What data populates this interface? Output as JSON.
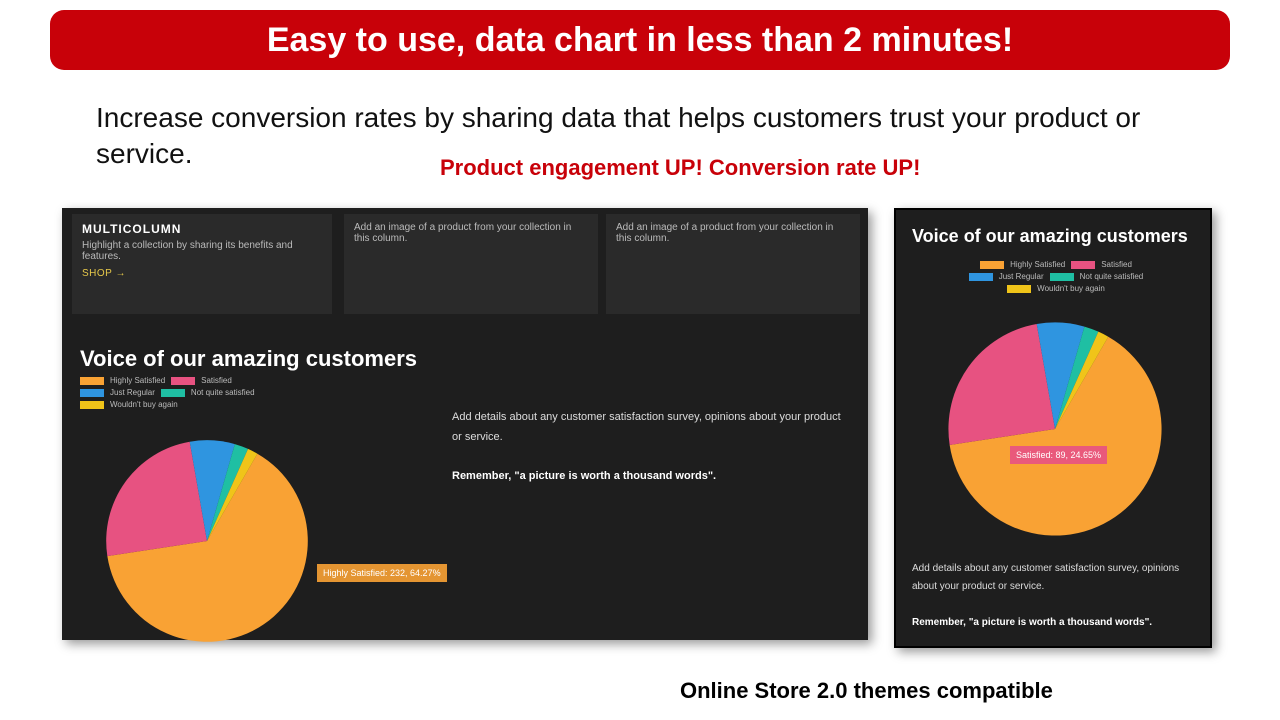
{
  "banner": {
    "text": "Easy to use, data chart in less than 2 minutes!",
    "bg": "#c80109",
    "fg": "#ffffff"
  },
  "subtitle": "Increase conversion rates by sharing data that helps customers trust your product or service.",
  "callout": {
    "text": "Product engagement UP! Conversion rate UP!",
    "color": "#c80109"
  },
  "footer": "Online Store 2.0 themes compatible",
  "multicolumn": {
    "title": "MULTICOLUMN",
    "blurb": "Highlight a collection by sharing its benefits and features.",
    "shop": "SHOP  →",
    "col_text": "Add an image of a product from your collection in this column."
  },
  "chart": {
    "title": "Voice of our amazing customers",
    "type": "pie",
    "legend": [
      {
        "label": "Highly Satisfied",
        "color": "#f9a234"
      },
      {
        "label": "Satisfied",
        "color": "#e75281"
      },
      {
        "label": "Just Regular",
        "color": "#2f95e0"
      },
      {
        "label": "Not quite satisfied",
        "color": "#1fbfa3"
      },
      {
        "label": "Wouldn't buy again",
        "color": "#f0c419"
      }
    ],
    "slices": [
      {
        "label": "Highly Satisfied",
        "value": 232,
        "pct": 64.27,
        "color": "#f9a234"
      },
      {
        "label": "Satisfied",
        "value": 89,
        "pct": 24.65,
        "color": "#e75281"
      },
      {
        "label": "Just Regular",
        "value": 26,
        "pct": 7.2,
        "color": "#2f95e0"
      },
      {
        "label": "Not quite satisfied",
        "value": 8,
        "pct": 2.22,
        "color": "#1fbfa3"
      },
      {
        "label": "Wouldn't buy again",
        "value": 6,
        "pct": 1.66,
        "color": "#f0c419"
      }
    ],
    "start_angle_deg": -60,
    "desc_line1": "Add details about any customer satisfaction survey, opinions about your product or service.",
    "desc_line2": "Remember, \"a picture is worth a thousand words\".",
    "tooltip_left": "Highly Satisfied: 232, 64.27%",
    "tooltip_right": "Satisfied: 89, 24.65%",
    "background": "#1e1e1e"
  }
}
